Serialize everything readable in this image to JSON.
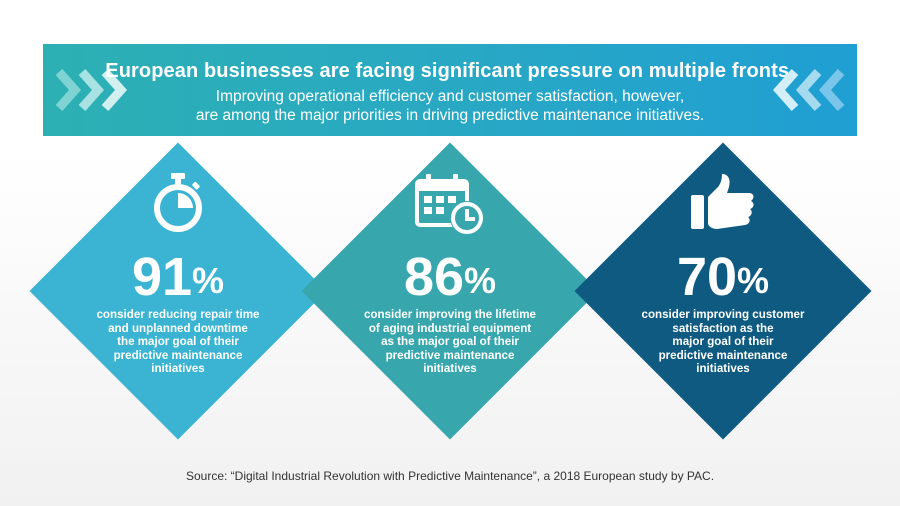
{
  "banner": {
    "headline": "European businesses are facing significant pressure on multiple fronts.",
    "subline_1": "Improving operational efficiency and customer satisfaction, however,",
    "subline_2": "are among the major priorities in driving predictive maintenance initiatives."
  },
  "stats": [
    {
      "value": "91",
      "sign": "%",
      "icon": "stopwatch-icon",
      "color": "#3ab4d2",
      "lines": [
        "consider reducing repair time",
        "and unplanned downtime",
        "the major goal of their",
        "predictive maintenance",
        "initiatives"
      ]
    },
    {
      "value": "86",
      "sign": "%",
      "icon": "calendar-clock-icon",
      "color": "#37a7ad",
      "lines": [
        "consider improving the lifetime",
        "of aging industrial equipment",
        "as the major goal of their",
        "predictive maintenance",
        "initiatives"
      ]
    },
    {
      "value": "70",
      "sign": "%",
      "icon": "thumbs-up-icon",
      "color": "#0f5a80",
      "lines": [
        "consider improving customer",
        "satisfaction as the",
        "major goal of their",
        "predictive maintenance",
        "initiatives"
      ]
    }
  ],
  "source": "Source: “Digital Industrial Revolution with Predictive Maintenance”, a 2018 European study by PAC."
}
